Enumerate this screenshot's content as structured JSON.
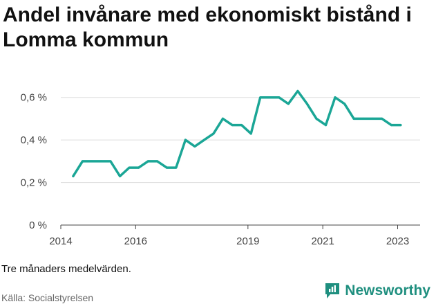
{
  "title": "Andel invånare med ekonomiskt bistånd i Lomma kommun",
  "note": "Tre månaders medelvärden.",
  "source": "Källa: Socialstyrelsen",
  "brand": {
    "name": "Newsworthy"
  },
  "colors": {
    "line": "#1ba696",
    "brand": "#1f8f7f",
    "grid": "#dddddd"
  },
  "chart_data": {
    "type": "line",
    "x_unit": "year",
    "xlim": [
      2014.0,
      2023.6
    ],
    "ylim": [
      0,
      0.7
    ],
    "x_ticks": [
      {
        "value": 2014,
        "label": "2014"
      },
      {
        "value": 2016,
        "label": "2016"
      },
      {
        "value": 2019,
        "label": "2019"
      },
      {
        "value": 2021,
        "label": "2021"
      },
      {
        "value": 2023,
        "label": "2023"
      }
    ],
    "y_ticks": [
      {
        "value": 0,
        "label": "0 %"
      },
      {
        "value": 0.2,
        "label": "0,2 %"
      },
      {
        "value": 0.4,
        "label": "0,4 %"
      },
      {
        "value": 0.6,
        "label": "0,6 %"
      }
    ],
    "grid": true,
    "series": [
      {
        "x": [
          2014.33,
          2014.58,
          2014.83,
          2015.08,
          2015.33,
          2015.58,
          2015.83,
          2016.08,
          2016.33,
          2016.58,
          2016.83,
          2017.08,
          2017.33,
          2017.58,
          2017.83,
          2018.08,
          2018.33,
          2018.58,
          2018.83,
          2019.08,
          2019.33,
          2019.58,
          2019.83,
          2020.08,
          2020.33,
          2020.58,
          2020.83,
          2021.08,
          2021.33,
          2021.58,
          2021.83,
          2022.08,
          2022.33,
          2022.58,
          2022.83,
          2023.08
        ],
        "y": [
          0.23,
          0.3,
          0.3,
          0.3,
          0.3,
          0.23,
          0.27,
          0.27,
          0.3,
          0.3,
          0.27,
          0.27,
          0.4,
          0.37,
          0.4,
          0.43,
          0.5,
          0.47,
          0.47,
          0.43,
          0.6,
          0.6,
          0.6,
          0.57,
          0.63,
          0.57,
          0.5,
          0.47,
          0.6,
          0.57,
          0.5,
          0.5,
          0.5,
          0.5,
          0.47,
          0.47
        ]
      }
    ]
  }
}
